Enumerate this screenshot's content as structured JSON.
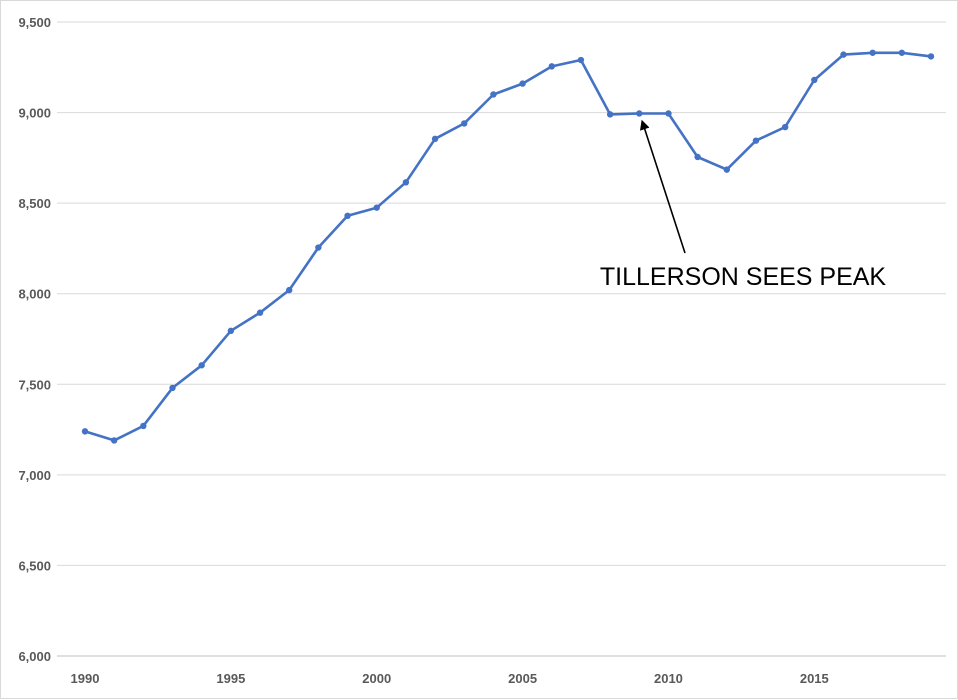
{
  "chart_data": {
    "type": "line",
    "x": [
      1990,
      1991,
      1992,
      1993,
      1994,
      1995,
      1996,
      1997,
      1998,
      1999,
      2000,
      2001,
      2002,
      2003,
      2004,
      2005,
      2006,
      2007,
      2008,
      2009,
      2010,
      2011,
      2012,
      2013,
      2014,
      2015,
      2016,
      2017,
      2018,
      2019
    ],
    "series": [
      {
        "values": [
          7240,
          7190,
          7270,
          7480,
          7605,
          7795,
          7895,
          8020,
          8255,
          8430,
          8475,
          8615,
          8855,
          8940,
          9100,
          9160,
          9255,
          9290,
          8990,
          8995,
          8995,
          8755,
          8685,
          8845,
          8920,
          9180,
          9320,
          9330,
          9330,
          9310
        ],
        "color": "#4472c4"
      }
    ],
    "ylim": [
      6000,
      9500
    ],
    "xlim": [
      1990,
      2019
    ],
    "yticks": [
      6000,
      6500,
      7000,
      7500,
      8000,
      8500,
      9000,
      9500
    ],
    "ytick_labels": [
      "6,000",
      "6,500",
      "7,000",
      "7,500",
      "8,000",
      "8,500",
      "9,000",
      "9,500"
    ],
    "xticks": [
      1990,
      1995,
      2000,
      2005,
      2010,
      2015
    ],
    "xtick_labels": [
      "1990",
      "1995",
      "2000",
      "2005",
      "2010",
      "2015"
    ],
    "grid": "horizontal",
    "title": "",
    "xlabel": "",
    "ylabel": "",
    "annotations": [
      {
        "text": "TILLERSON SEES PEAK",
        "points_to": {
          "x": 2009,
          "y": 8895
        }
      }
    ]
  }
}
